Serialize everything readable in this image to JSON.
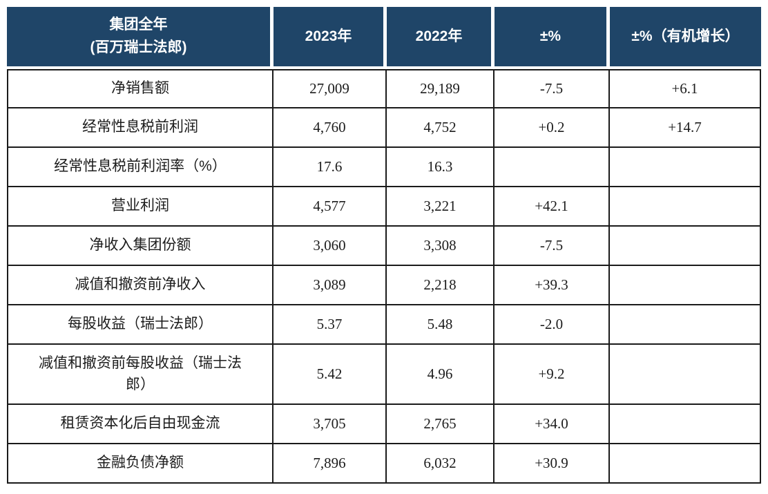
{
  "colors": {
    "header_bg": "#1f4568",
    "header_text": "#ffffff",
    "border": "#1a1a1a",
    "body_text": "#1c1c1c",
    "page_bg": "#ffffff"
  },
  "table": {
    "header": {
      "title_line1": "集团全年",
      "title_line2": "(百万瑞士法郎)",
      "col_2023": "2023年",
      "col_2022": "2022年",
      "col_change": "±%",
      "col_organic": "±%（有机增长）"
    },
    "rows": [
      {
        "label": "净销售额",
        "y2023": "27,009",
        "y2022": "29,189",
        "change": "-7.5",
        "organic": "+6.1"
      },
      {
        "label": "经常性息税前利润",
        "y2023": "4,760",
        "y2022": "4,752",
        "change": "+0.2",
        "organic": "+14.7"
      },
      {
        "label": "经常性息税前利润率（%）",
        "y2023": "17.6",
        "y2022": "16.3",
        "change": "",
        "organic": ""
      },
      {
        "label": "营业利润",
        "y2023": "4,577",
        "y2022": "3,221",
        "change": "+42.1",
        "organic": ""
      },
      {
        "label": "净收入集团份额",
        "y2023": "3,060",
        "y2022": "3,308",
        "change": "-7.5",
        "organic": ""
      },
      {
        "label": "减值和撤资前净收入",
        "y2023": "3,089",
        "y2022": "2,218",
        "change": "+39.3",
        "organic": ""
      },
      {
        "label": "每股收益（瑞士法郎）",
        "y2023": "5.37",
        "y2022": "5.48",
        "change": "-2.0",
        "organic": ""
      },
      {
        "label": "减值和撤资前每股收益（瑞士法郎）",
        "y2023": "5.42",
        "y2022": "4.96",
        "change": "+9.2",
        "organic": ""
      },
      {
        "label": "租赁资本化后自由现金流",
        "y2023": "3,705",
        "y2022": "2,765",
        "change": "+34.0",
        "organic": ""
      },
      {
        "label": "金融负债净额",
        "y2023": "7,896",
        "y2022": "6,032",
        "change": "+30.9",
        "organic": ""
      }
    ]
  },
  "chart_data": {
    "type": "table",
    "title": "集团全年 (百万瑞士法郎)",
    "columns": [
      "集团全年 (百万瑞士法郎)",
      "2023年",
      "2022年",
      "±%",
      "±%（有机增长）"
    ],
    "rows": [
      [
        "净销售额",
        "27,009",
        "29,189",
        "-7.5",
        "+6.1"
      ],
      [
        "经常性息税前利润",
        "4,760",
        "4,752",
        "+0.2",
        "+14.7"
      ],
      [
        "经常性息税前利润率（%）",
        "17.6",
        "16.3",
        "",
        ""
      ],
      [
        "营业利润",
        "4,577",
        "3,221",
        "+42.1",
        ""
      ],
      [
        "净收入集团份额",
        "3,060",
        "3,308",
        "-7.5",
        ""
      ],
      [
        "减值和撤资前净收入",
        "3,089",
        "2,218",
        "+39.3",
        ""
      ],
      [
        "每股收益（瑞士法郎）",
        "5.37",
        "5.48",
        "-2.0",
        ""
      ],
      [
        "减值和撤资前每股收益（瑞士法郎）",
        "5.42",
        "4.96",
        "+9.2",
        ""
      ],
      [
        "租赁资本化后自由现金流",
        "3,705",
        "2,765",
        "+34.0",
        ""
      ],
      [
        "金融负债净额",
        "7,896",
        "6,032",
        "+30.9",
        ""
      ]
    ]
  }
}
